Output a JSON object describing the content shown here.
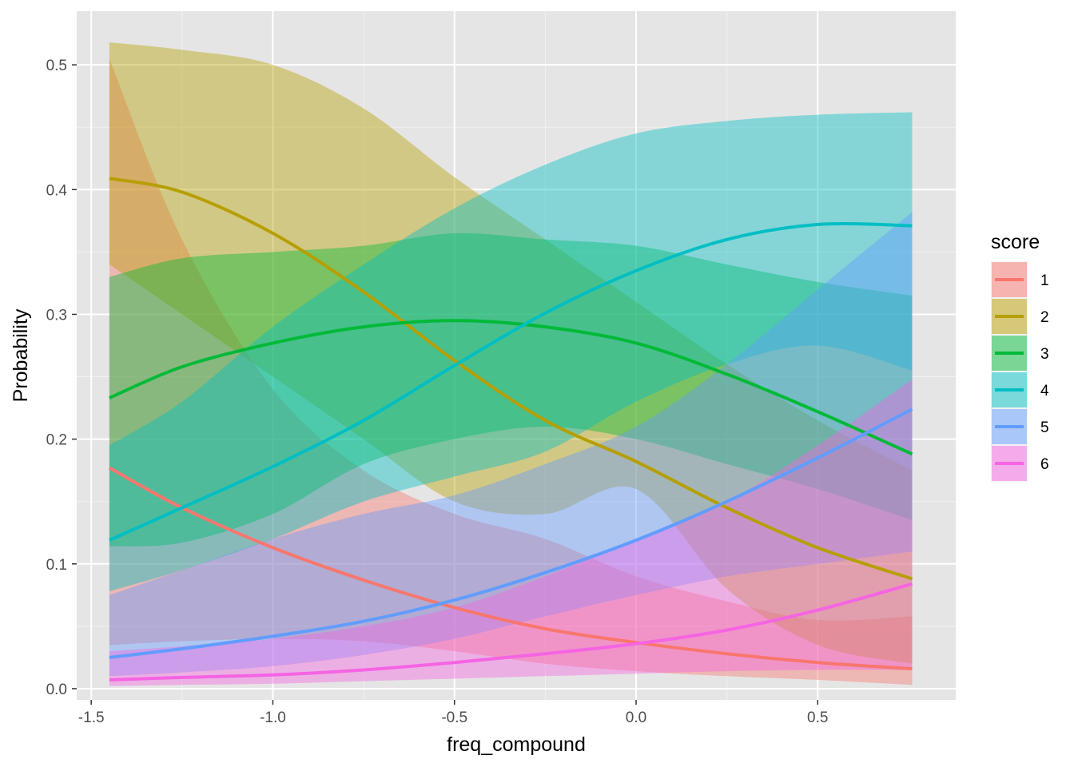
{
  "chart_data": {
    "type": "line",
    "xlabel": "freq_compound",
    "ylabel": "Probability",
    "xlim": [
      -1.54,
      0.88
    ],
    "ylim": [
      -0.009,
      0.543
    ],
    "x_ticks": [
      "-1.5",
      "-1.0",
      "-0.5",
      "0.0",
      "0.5"
    ],
    "x_tick_values": [
      -1.5,
      -1.0,
      -0.5,
      0.0,
      0.5
    ],
    "y_ticks": [
      "0.0",
      "0.1",
      "0.2",
      "0.3",
      "0.4",
      "0.5"
    ],
    "y_tick_values": [
      0.0,
      0.1,
      0.2,
      0.3,
      0.4,
      0.5
    ],
    "grid": true,
    "legend_title": "score",
    "legend_position": "right",
    "x": [
      -1.45,
      -1.25,
      -1.0,
      -0.75,
      -0.5,
      -0.25,
      0.0,
      0.25,
      0.5,
      0.76
    ],
    "series": [
      {
        "name": "1",
        "color": "#F8766D",
        "values": [
          0.177,
          0.145,
          0.113,
          0.087,
          0.065,
          0.048,
          0.037,
          0.028,
          0.021,
          0.016
        ],
        "lower": [
          0.035,
          0.038,
          0.04,
          0.038,
          0.03,
          0.02,
          0.014,
          0.01,
          0.007,
          0.003
        ],
        "upper": [
          0.505,
          0.36,
          0.24,
          0.175,
          0.14,
          0.12,
          0.09,
          0.07,
          0.055,
          0.058
        ]
      },
      {
        "name": "2",
        "color": "#B79F00",
        "values": [
          0.409,
          0.398,
          0.365,
          0.318,
          0.263,
          0.215,
          0.182,
          0.145,
          0.113,
          0.088
        ],
        "lower": [
          0.34,
          0.3,
          0.25,
          0.2,
          0.15,
          0.14,
          0.16,
          0.08,
          0.035,
          0.02
        ],
        "upper": [
          0.518,
          0.512,
          0.5,
          0.465,
          0.41,
          0.36,
          0.31,
          0.26,
          0.215,
          0.175
        ]
      },
      {
        "name": "3",
        "color": "#00BA38",
        "values": [
          0.233,
          0.258,
          0.277,
          0.29,
          0.295,
          0.29,
          0.277,
          0.252,
          0.222,
          0.188
        ],
        "lower": [
          0.114,
          0.117,
          0.14,
          0.18,
          0.2,
          0.21,
          0.2,
          0.18,
          0.16,
          0.135
        ],
        "upper": [
          0.33,
          0.345,
          0.35,
          0.355,
          0.365,
          0.36,
          0.355,
          0.34,
          0.326,
          0.315
        ]
      },
      {
        "name": "4",
        "color": "#00BFC4",
        "values": [
          0.119,
          0.145,
          0.178,
          0.215,
          0.259,
          0.301,
          0.335,
          0.36,
          0.372,
          0.371
        ],
        "lower": [
          0.078,
          0.095,
          0.12,
          0.15,
          0.17,
          0.19,
          0.23,
          0.26,
          0.275,
          0.255
        ],
        "upper": [
          0.195,
          0.23,
          0.29,
          0.34,
          0.385,
          0.42,
          0.445,
          0.455,
          0.46,
          0.462
        ]
      },
      {
        "name": "5",
        "color": "#619CFF",
        "values": [
          0.025,
          0.032,
          0.042,
          0.054,
          0.071,
          0.093,
          0.119,
          0.15,
          0.185,
          0.224
        ],
        "lower": [
          0.01,
          0.013,
          0.018,
          0.027,
          0.04,
          0.058,
          0.075,
          0.09,
          0.1,
          0.11
        ],
        "upper": [
          0.075,
          0.095,
          0.12,
          0.14,
          0.155,
          0.18,
          0.21,
          0.26,
          0.32,
          0.382
        ]
      },
      {
        "name": "6",
        "color": "#F564E3",
        "values": [
          0.007,
          0.009,
          0.011,
          0.015,
          0.021,
          0.028,
          0.036,
          0.047,
          0.063,
          0.084
        ],
        "lower": [
          0.002,
          0.003,
          0.004,
          0.006,
          0.008,
          0.01,
          0.012,
          0.014,
          0.015,
          0.015
        ],
        "upper": [
          0.03,
          0.034,
          0.04,
          0.05,
          0.065,
          0.09,
          0.12,
          0.15,
          0.195,
          0.248
        ]
      }
    ]
  }
}
